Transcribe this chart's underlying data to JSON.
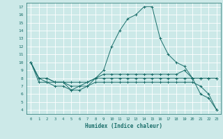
{
  "xlabel": "Humidex (Indice chaleur)",
  "background_color": "#cce9e8",
  "grid_color": "#ffffff",
  "line_color": "#1a6e6a",
  "xlim": [
    -0.5,
    23.5
  ],
  "ylim": [
    3.5,
    17.5
  ],
  "xticks": [
    0,
    1,
    2,
    3,
    4,
    5,
    6,
    7,
    8,
    9,
    10,
    11,
    12,
    13,
    14,
    15,
    16,
    17,
    18,
    19,
    20,
    21,
    22,
    23
  ],
  "yticks": [
    4,
    5,
    6,
    7,
    8,
    9,
    10,
    11,
    12,
    13,
    14,
    15,
    16,
    17
  ],
  "line1_x": [
    0,
    1,
    2,
    3,
    4,
    5,
    6,
    7,
    8,
    9,
    10,
    11,
    12,
    13,
    14,
    15,
    16,
    17,
    18,
    19,
    20,
    21,
    22,
    23
  ],
  "line1_y": [
    10,
    8,
    7.5,
    7.5,
    7.5,
    7.5,
    7.5,
    7.5,
    8,
    8.5,
    8.5,
    8.5,
    8.5,
    8.5,
    8.5,
    8.5,
    8.5,
    8.5,
    8.5,
    9,
    8,
    8,
    8,
    8
  ],
  "line2_x": [
    0,
    1,
    2,
    3,
    4,
    5,
    6,
    7,
    8,
    9,
    10,
    11,
    12,
    13,
    14,
    15,
    16,
    17,
    18,
    19,
    20,
    21,
    22,
    23
  ],
  "line2_y": [
    10,
    7.5,
    7.5,
    7,
    7,
    6.5,
    6.5,
    7,
    8,
    9,
    12,
    14,
    15.5,
    16,
    17,
    17,
    13,
    11,
    10,
    9.5,
    8,
    6,
    5.5,
    4
  ],
  "line3_x": [
    0,
    1,
    2,
    3,
    4,
    5,
    6,
    7,
    8,
    9,
    10,
    11,
    12,
    13,
    14,
    15,
    16,
    17,
    18,
    19,
    20,
    21,
    22,
    23
  ],
  "line3_y": [
    10,
    8,
    8,
    7.5,
    7.5,
    7,
    7,
    7.5,
    8,
    8,
    8,
    8,
    8,
    8,
    8,
    8,
    8,
    8,
    8,
    8,
    8,
    8,
    8,
    8
  ],
  "line4_x": [
    0,
    1,
    2,
    3,
    4,
    5,
    6,
    7,
    8,
    9,
    10,
    11,
    12,
    13,
    14,
    15,
    16,
    17,
    18,
    19,
    20,
    21,
    22,
    23
  ],
  "line4_y": [
    10,
    8,
    8,
    7.5,
    7.5,
    6.5,
    7,
    7,
    7.5,
    7.5,
    7.5,
    7.5,
    7.5,
    7.5,
    7.5,
    7.5,
    7.5,
    7.5,
    7.5,
    7.5,
    7.5,
    7,
    6,
    4
  ]
}
